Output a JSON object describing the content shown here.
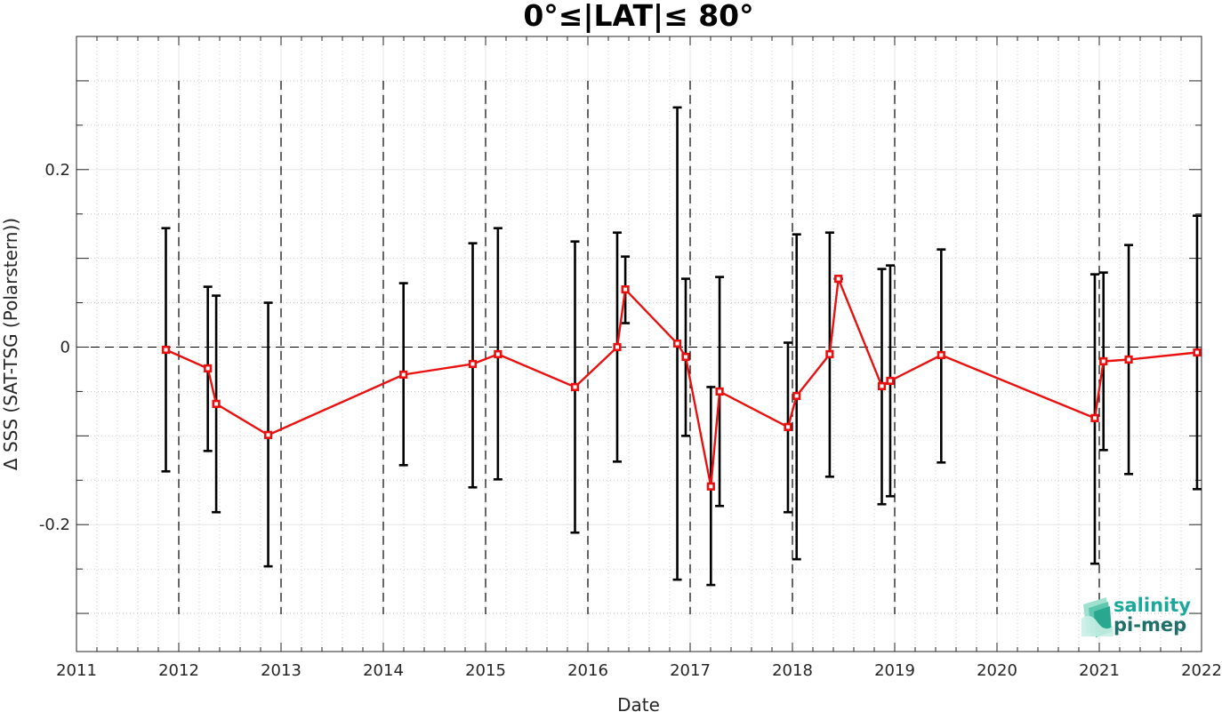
{
  "chart_data": {
    "type": "line",
    "title": "0°≤|LAT|≤ 80°",
    "xlabel": "Date",
    "ylabel": "Δ SSS (SAT-TSG (Polarstern))",
    "xlim": [
      "2011-01-01",
      "2022-01-01"
    ],
    "ylim": [
      -0.343,
      0.35
    ],
    "x_ticks": [
      "2011",
      "2012",
      "2013",
      "2014",
      "2015",
      "2016",
      "2017",
      "2018",
      "2019",
      "2020",
      "2021",
      "2022"
    ],
    "y_ticks": [
      {
        "value": 0.2,
        "label": "0.2"
      },
      {
        "value": 0,
        "label": "0"
      },
      {
        "value": -0.2,
        "label": "-0.2"
      }
    ],
    "year_boundaries": [
      "2012",
      "2013",
      "2014",
      "2015",
      "2016",
      "2017",
      "2018",
      "2019",
      "2020",
      "2021"
    ],
    "zero_line": true,
    "grid": true,
    "minor_grid": true,
    "series": [
      {
        "color": "#e8110f",
        "marker": "square",
        "errorbar_color": "#000000",
        "points": [
          {
            "x": "2011-11-16",
            "y": -0.003,
            "low": -0.14,
            "high": 0.134
          },
          {
            "x": "2012-04-14",
            "y": -0.024,
            "low": -0.117,
            "high": 0.068
          },
          {
            "x": "2012-05-14",
            "y": -0.064,
            "low": -0.186,
            "high": 0.058
          },
          {
            "x": "2012-11-16",
            "y": -0.099,
            "low": -0.247,
            "high": 0.05
          },
          {
            "x": "2014-03-14",
            "y": -0.031,
            "low": -0.133,
            "high": 0.072
          },
          {
            "x": "2014-11-16",
            "y": -0.019,
            "low": -0.158,
            "high": 0.117
          },
          {
            "x": "2015-02-14",
            "y": -0.008,
            "low": -0.149,
            "high": 0.134
          },
          {
            "x": "2015-11-16",
            "y": -0.045,
            "low": -0.209,
            "high": 0.119
          },
          {
            "x": "2016-04-15",
            "y": 0.0,
            "low": -0.129,
            "high": 0.129
          },
          {
            "x": "2016-05-14",
            "y": 0.065,
            "low": 0.027,
            "high": 0.102
          },
          {
            "x": "2016-11-16",
            "y": 0.004,
            "low": -0.262,
            "high": 0.27
          },
          {
            "x": "2016-12-16",
            "y": -0.011,
            "low": -0.1,
            "high": 0.077
          },
          {
            "x": "2017-03-16",
            "y": -0.157,
            "low": -0.268,
            "high": -0.045
          },
          {
            "x": "2017-04-16",
            "y": -0.05,
            "low": -0.179,
            "high": 0.079
          },
          {
            "x": "2017-12-16",
            "y": -0.09,
            "low": -0.186,
            "high": 0.005
          },
          {
            "x": "2018-01-16",
            "y": -0.055,
            "low": -0.239,
            "high": 0.127
          },
          {
            "x": "2018-05-14",
            "y": -0.008,
            "low": -0.146,
            "high": 0.129
          },
          {
            "x": "2018-06-14",
            "y": 0.077,
            "low": 0.077,
            "high": 0.077
          },
          {
            "x": "2018-11-16",
            "y": -0.044,
            "low": -0.177,
            "high": 0.088
          },
          {
            "x": "2018-12-16",
            "y": -0.038,
            "low": -0.168,
            "high": 0.092
          },
          {
            "x": "2019-06-16",
            "y": -0.009,
            "low": -0.13,
            "high": 0.11
          },
          {
            "x": "2020-12-16",
            "y": -0.08,
            "low": -0.244,
            "high": 0.082
          },
          {
            "x": "2021-01-16",
            "y": -0.016,
            "low": -0.116,
            "high": 0.084
          },
          {
            "x": "2021-04-16",
            "y": -0.014,
            "low": -0.143,
            "high": 0.115
          },
          {
            "x": "2021-12-16",
            "y": -0.006,
            "low": -0.16,
            "high": 0.148
          }
        ]
      }
    ]
  },
  "logo": {
    "line1": "salinity",
    "line2": "pi-mep",
    "color1": "#1aa89a",
    "color2": "#1f6f6a"
  }
}
